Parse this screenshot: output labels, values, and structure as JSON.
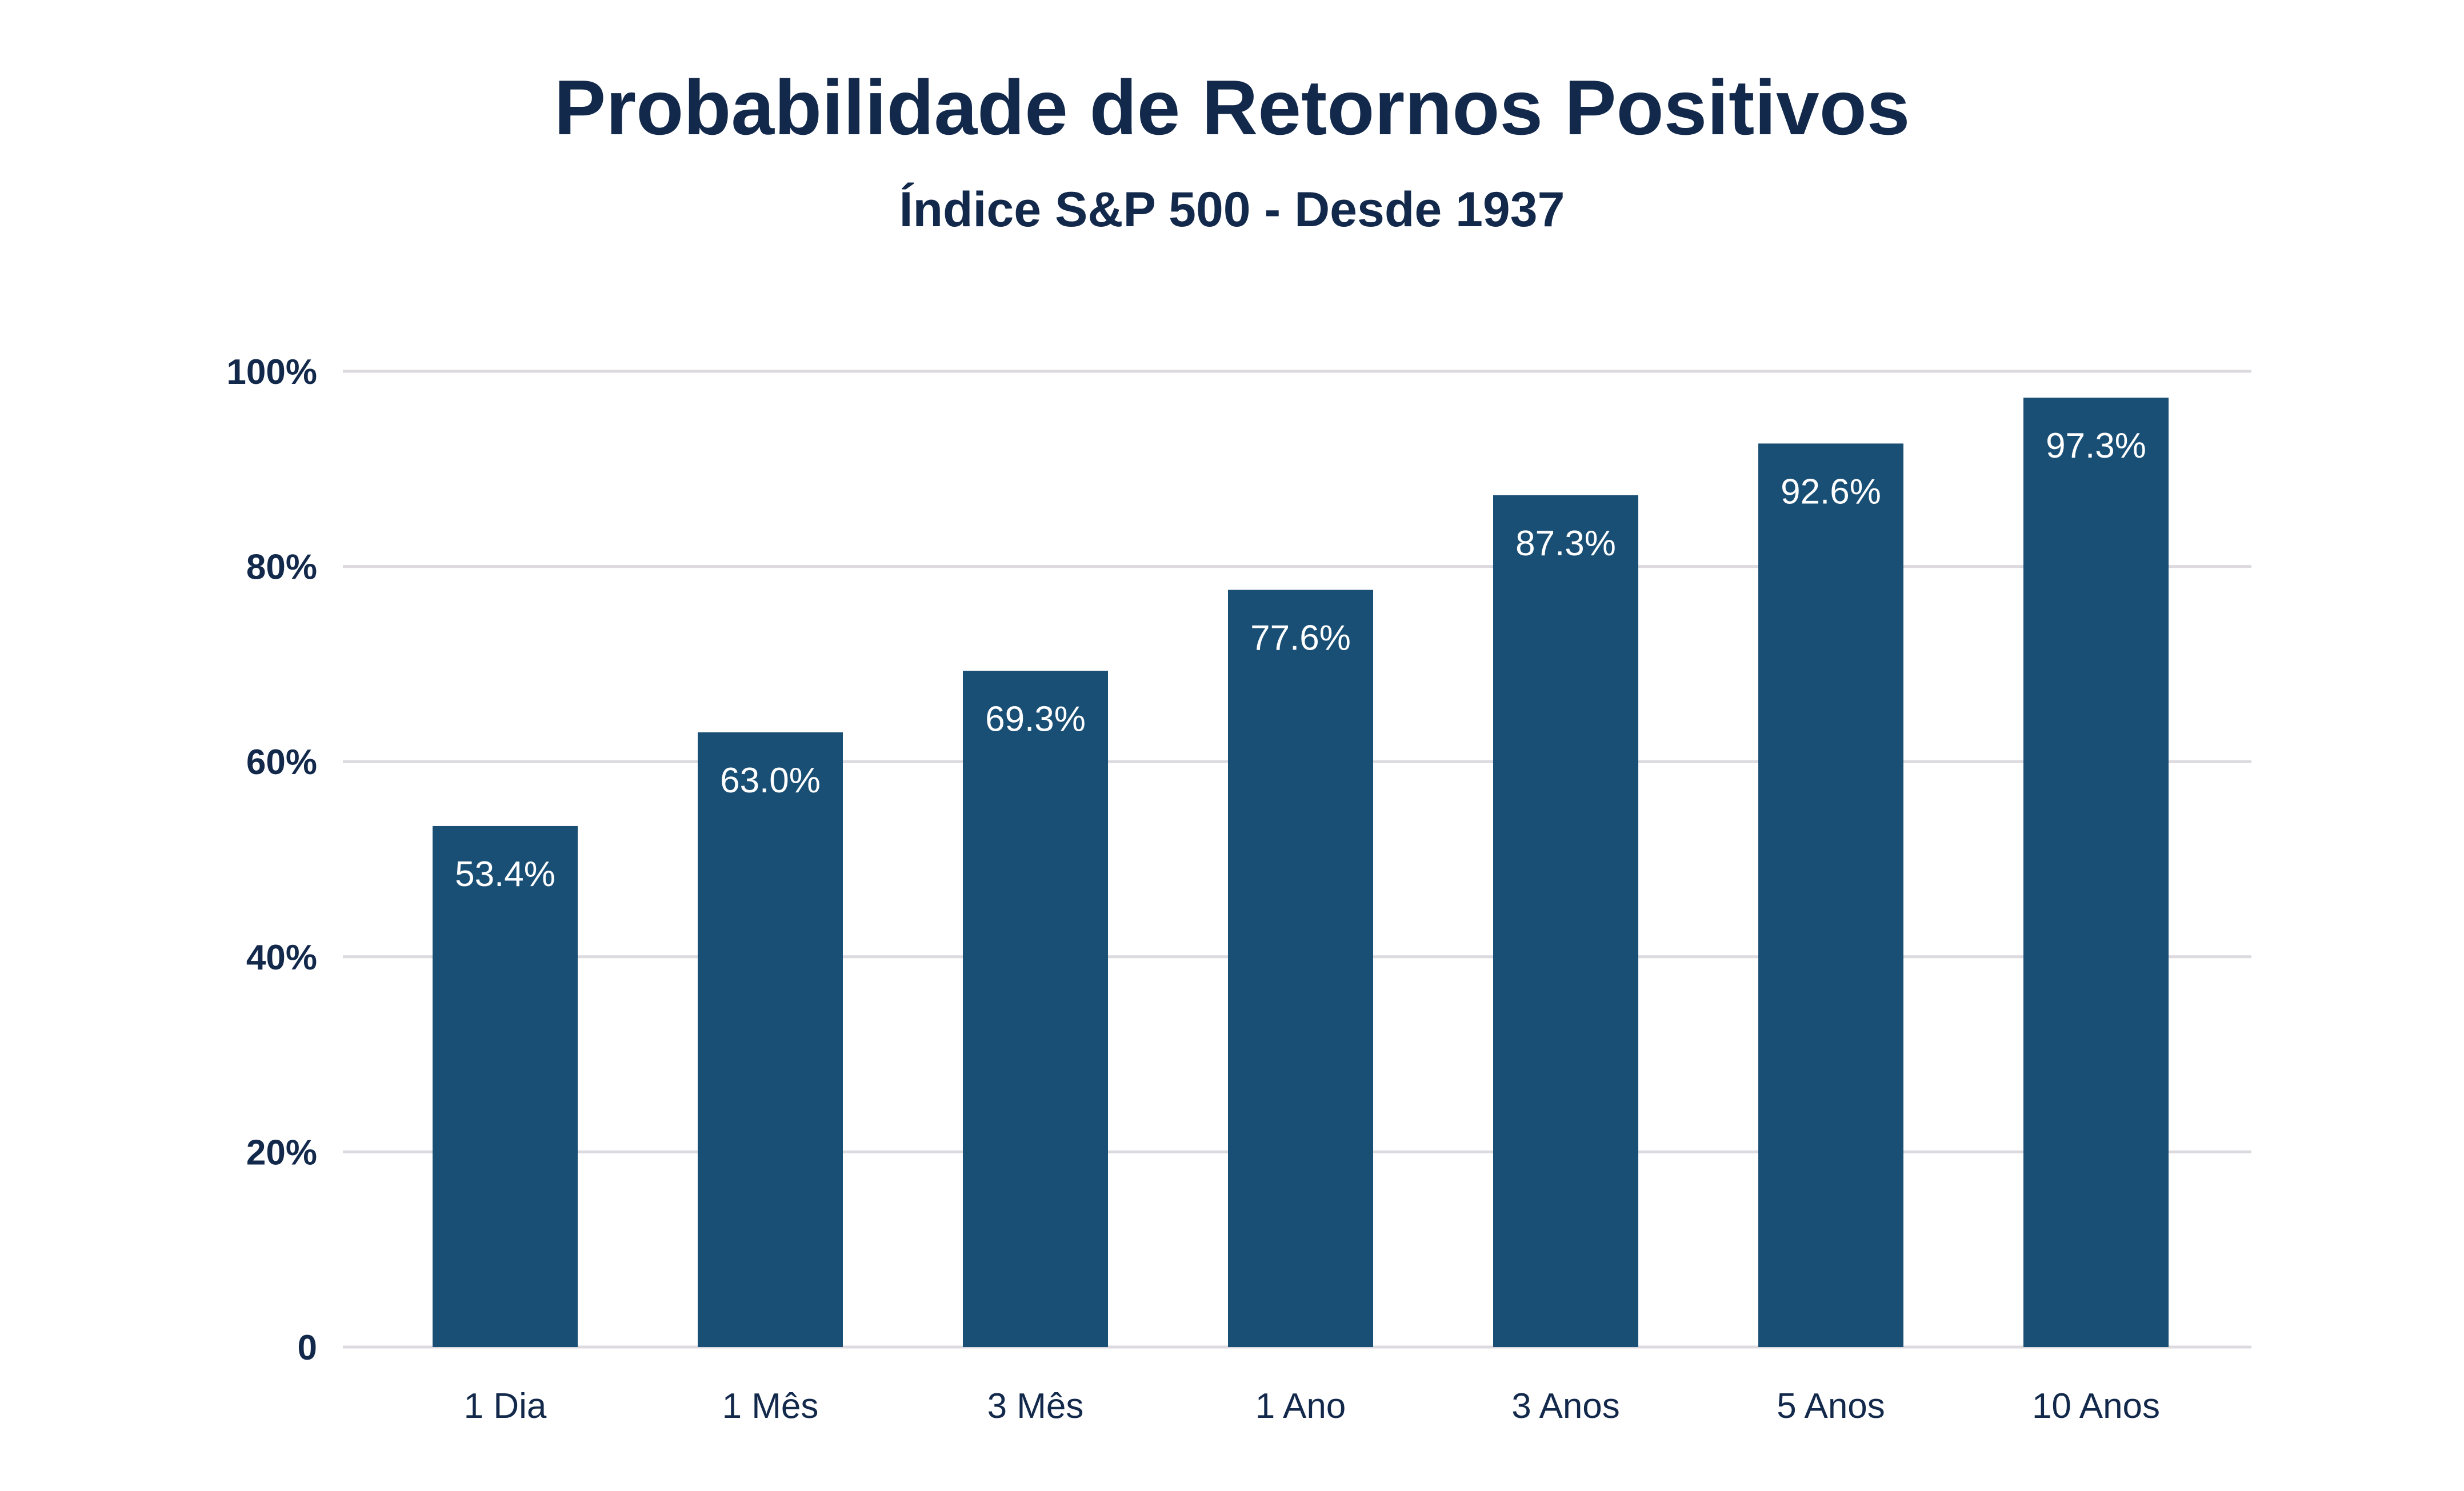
{
  "chart_data": {
    "type": "bar",
    "title": "Probabilidade de Retornos Positivos",
    "subtitle": "Índice S&P 500 - Desde 1937",
    "categories": [
      "1 Dia",
      "1 Mês",
      "3 Mês",
      "1 Ano",
      "3 Anos",
      "5 Anos",
      "10 Anos"
    ],
    "values": [
      53.4,
      63.0,
      69.3,
      77.6,
      87.3,
      92.6,
      97.3
    ],
    "data_labels": [
      "53.4%",
      "63.0%",
      "69.3%",
      "77.6%",
      "87.3%",
      "92.6%",
      "97.3%"
    ],
    "ylim": [
      0,
      100
    ],
    "yticks": [
      0,
      20,
      40,
      60,
      80,
      100
    ],
    "ytick_labels": [
      "0",
      "20%",
      "40%",
      "60%",
      "80%",
      "100%"
    ],
    "xlabel": "",
    "ylabel": "",
    "grid": true,
    "legend": "none",
    "colors": {
      "bar": "#1a4f75",
      "grid": "#dcdadf",
      "text": "#13294b",
      "label": "#ffffff"
    }
  }
}
